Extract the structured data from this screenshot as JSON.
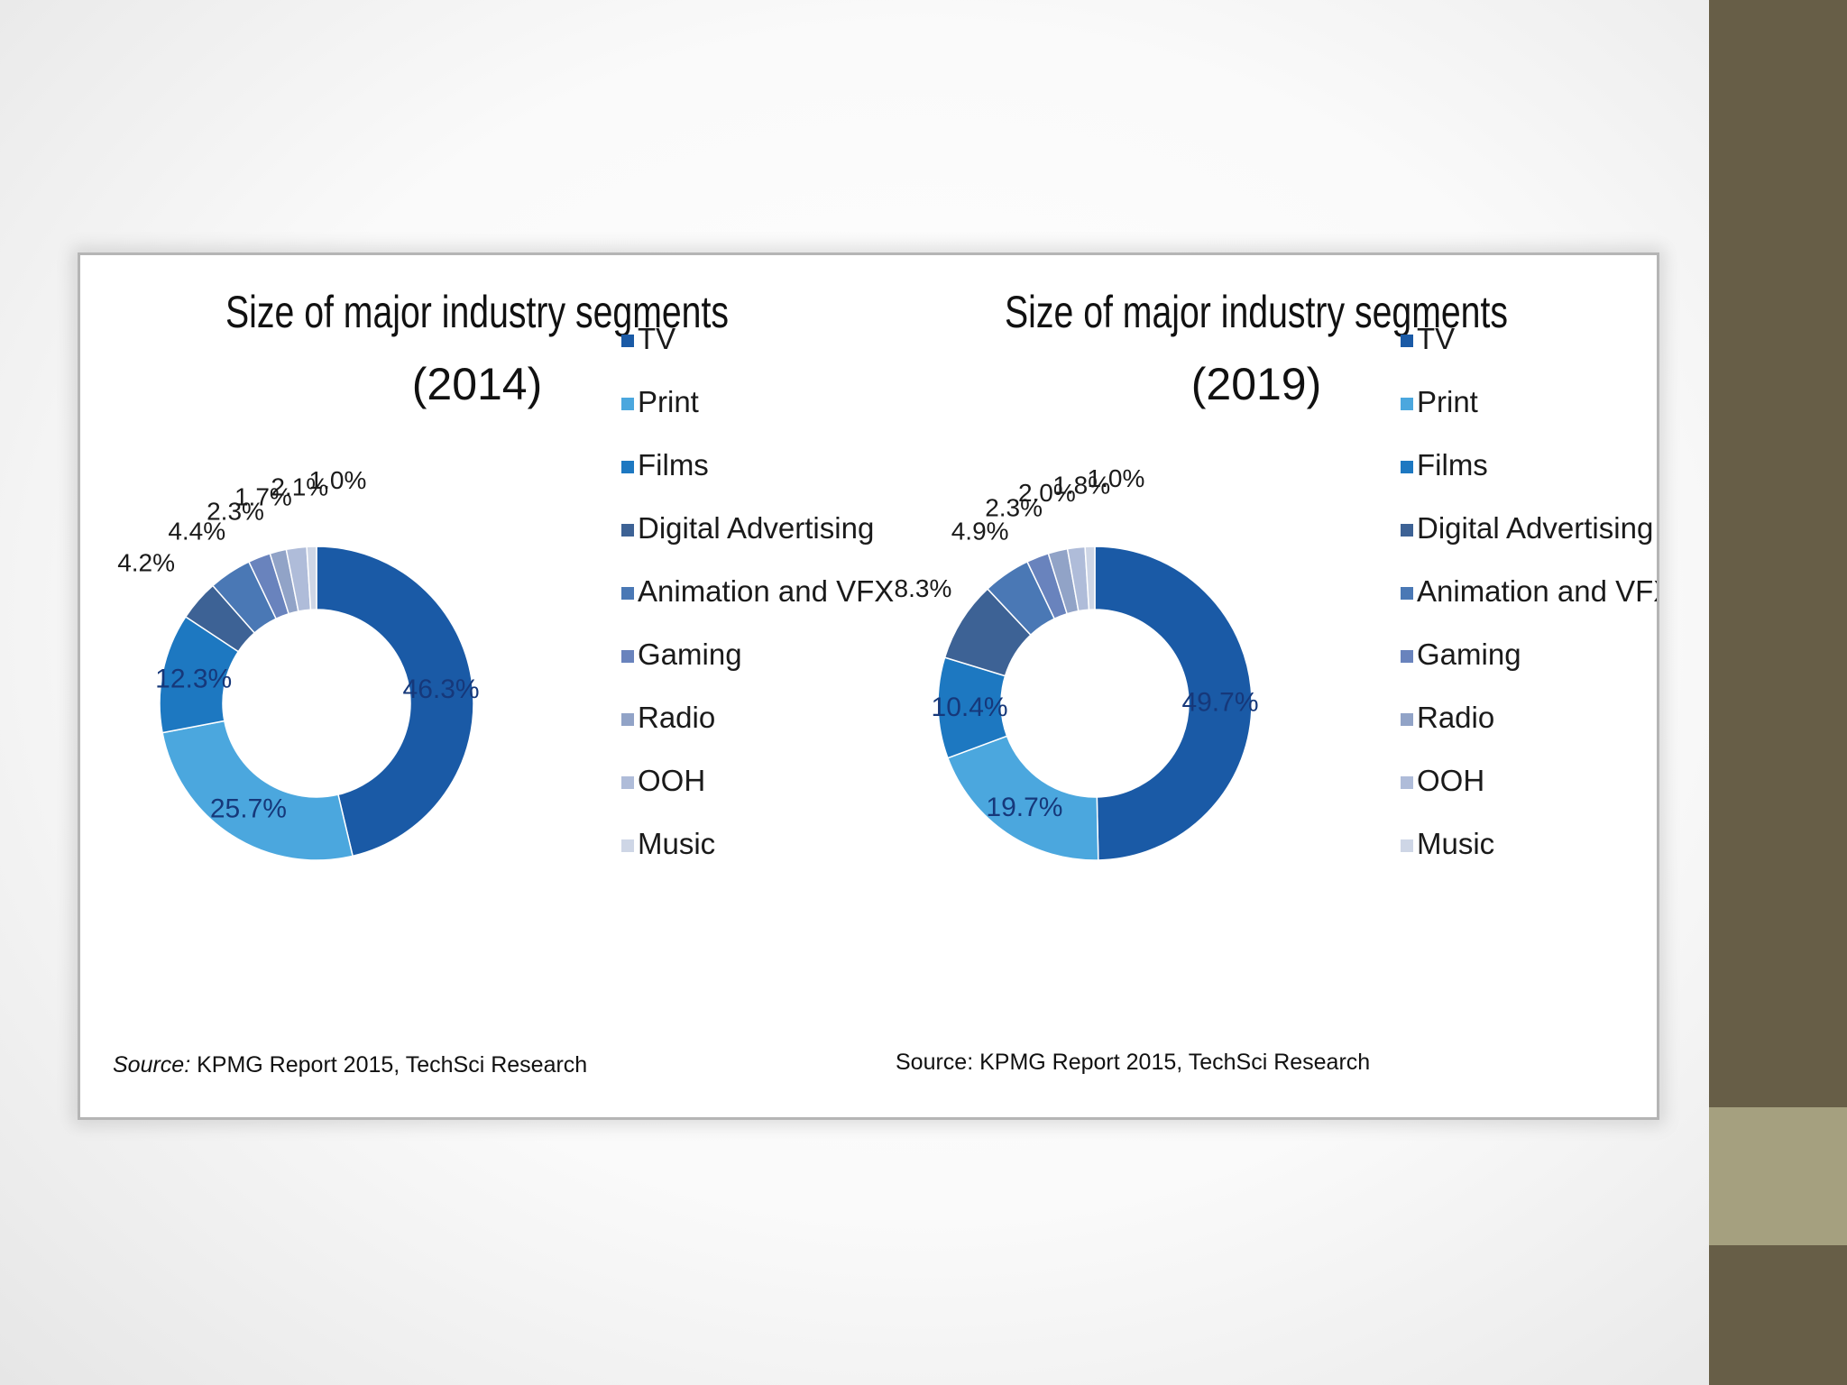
{
  "chart_data": [
    {
      "type": "pie",
      "variant": "donut",
      "title_line1": "Size of major industry segments",
      "title_line2": "(2014)",
      "categories": [
        "TV",
        "Print",
        "Films",
        "Digital Advertising",
        "Animation and VFX",
        "Gaming",
        "Radio",
        "OOH",
        "Music"
      ],
      "values": [
        46.3,
        25.7,
        12.3,
        4.2,
        4.4,
        2.3,
        1.7,
        2.1,
        1.0
      ],
      "labels": [
        "46.3%",
        "25.7%",
        "12.3%",
        "4.2%",
        "4.4%",
        "2.3%",
        "1.7%",
        "2.1%",
        "1.0%"
      ],
      "legend_placement": "right",
      "source_prefix": "Source:",
      "source_text": " KPMG Report 2015, TechSci Research"
    },
    {
      "type": "pie",
      "variant": "donut",
      "title_line1": "Size of major industry segments",
      "title_line2": "(2019)",
      "categories": [
        "TV",
        "Print",
        "Films",
        "Digital Advertising",
        "Animation and VFX",
        "Gaming",
        "Radio",
        "OOH",
        "Music"
      ],
      "values": [
        49.7,
        19.7,
        10.4,
        8.3,
        4.9,
        2.3,
        2.0,
        1.8,
        1.0
      ],
      "labels": [
        "49.7%",
        "19.7%",
        "10.4%",
        "8.3%",
        "4.9%",
        "2.3%",
        "2.0%",
        "1.8%",
        "1.0%"
      ],
      "legend_placement": "right",
      "source_prefix": "",
      "source_text": "Source: KPMG Report 2015, TechSci Research"
    }
  ],
  "colors": [
    "#1a5aa6",
    "#4ba7de",
    "#1d78c1",
    "#3d6295",
    "#4a78b5",
    "#6983bd",
    "#91a3c7",
    "#afbcd9",
    "#ced6e6"
  ]
}
